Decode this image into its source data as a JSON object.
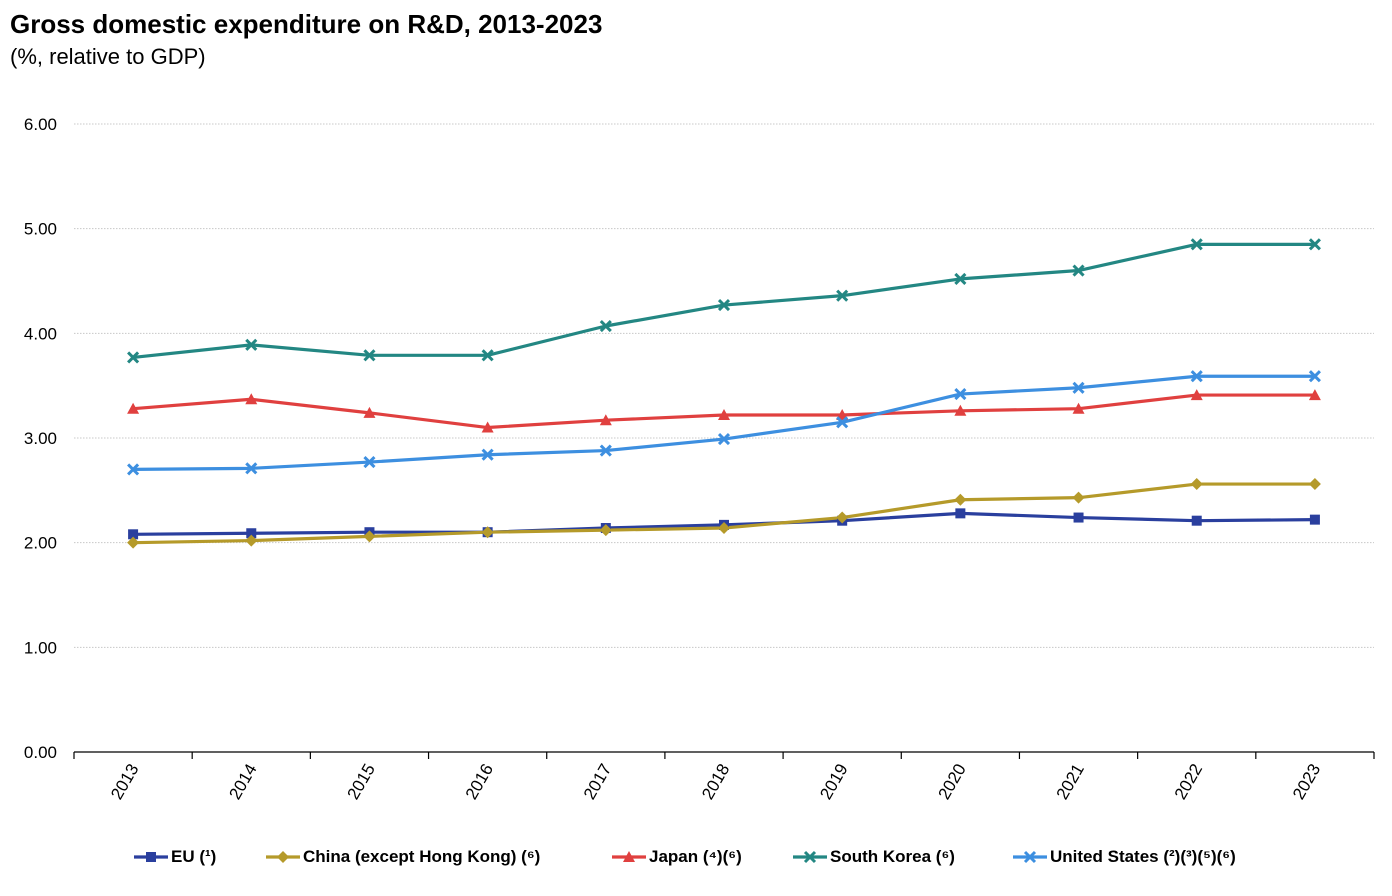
{
  "header": {
    "title": "Gross domestic expenditure on R&D, 2013-2023",
    "subtitle": "(%, relative to GDP)"
  },
  "chart_data": {
    "type": "line",
    "title": "Gross domestic expenditure on R&D, 2013-2023",
    "subtitle": "(%, relative to GDP)",
    "xlabel": "",
    "ylabel": "",
    "x": [
      "2013",
      "2014",
      "2015",
      "2016",
      "2017",
      "2018",
      "2019",
      "2020",
      "2021",
      "2022",
      "2023"
    ],
    "ylim": [
      0,
      6
    ],
    "yticks": [
      "0.00",
      "1.00",
      "2.00",
      "3.00",
      "4.00",
      "5.00",
      "6.00"
    ],
    "grid": "horizontal",
    "legend_position": "bottom",
    "series": [
      {
        "name": "EU (¹)",
        "color": "#2a3f9e",
        "marker": "square",
        "values": [
          2.08,
          2.09,
          2.1,
          2.1,
          2.14,
          2.17,
          2.21,
          2.28,
          2.24,
          2.21,
          2.22
        ]
      },
      {
        "name": "China (except Hong Kong) (⁶)",
        "color": "#b59a2a",
        "marker": "diamond",
        "values": [
          2.0,
          2.02,
          2.06,
          2.1,
          2.12,
          2.14,
          2.24,
          2.41,
          2.43,
          2.56,
          2.56
        ]
      },
      {
        "name": "Japan (⁴)(⁶)",
        "color": "#e0403f",
        "marker": "triangle",
        "values": [
          3.28,
          3.37,
          3.24,
          3.1,
          3.17,
          3.22,
          3.22,
          3.26,
          3.28,
          3.41,
          3.41
        ]
      },
      {
        "name": "South Korea (⁶)",
        "color": "#238783",
        "marker": "x",
        "values": [
          3.77,
          3.89,
          3.79,
          3.79,
          4.07,
          4.27,
          4.36,
          4.52,
          4.6,
          4.85,
          4.85
        ]
      },
      {
        "name": "United States (²)(³)(⁵)(⁶)",
        "color": "#3d8fe0",
        "marker": "x",
        "values": [
          2.7,
          2.71,
          2.77,
          2.84,
          2.88,
          2.99,
          3.15,
          3.42,
          3.48,
          3.59,
          3.59
        ]
      }
    ]
  }
}
